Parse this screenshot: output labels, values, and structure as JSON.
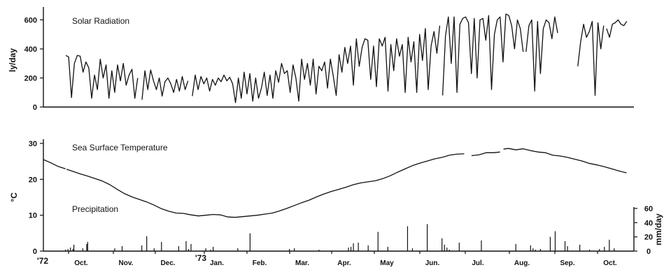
{
  "chart_data": [
    {
      "type": "line",
      "title": "Solar Radiation",
      "ylabel": "ly/day",
      "ylim": [
        0,
        650
      ],
      "yticks": [
        0,
        200,
        400,
        600
      ],
      "xlim": [
        0,
        395
      ],
      "segments": [
        {
          "x": [
            0,
            2,
            4,
            6,
            8,
            10,
            12,
            14,
            16,
            18,
            20,
            22,
            24,
            26,
            28,
            30,
            32,
            34,
            36,
            38,
            40,
            42,
            44,
            46,
            48,
            50
          ],
          "y": [
            355,
            345,
            65,
            300,
            355,
            350,
            240,
            310,
            270,
            60,
            220,
            120,
            330,
            200,
            290,
            60,
            250,
            100,
            290,
            180,
            300,
            150,
            220,
            260,
            60,
            200
          ]
        },
        {
          "x": [
            53,
            55,
            57,
            59,
            61,
            63,
            65,
            67,
            69,
            71,
            73,
            75,
            77,
            79,
            81,
            83,
            85
          ],
          "y": [
            50,
            250,
            120,
            255,
            180,
            120,
            200,
            75,
            175,
            200,
            160,
            100,
            190,
            110,
            210,
            120,
            180
          ]
        },
        {
          "x": [
            88,
            90,
            92,
            94,
            96,
            98,
            100,
            102,
            104,
            106,
            108,
            110,
            112,
            114,
            116,
            118,
            120,
            122,
            124,
            126,
            128,
            130,
            132,
            134,
            136,
            138,
            140,
            142,
            144,
            146,
            148,
            150,
            152,
            154,
            156,
            158,
            160,
            162,
            164,
            166,
            168,
            170,
            172,
            174,
            176,
            178,
            180,
            182,
            184,
            186,
            188,
            190,
            192,
            194,
            196,
            198,
            200,
            202,
            204,
            206,
            208,
            210,
            212,
            214,
            216,
            218,
            220,
            222,
            224,
            226,
            228,
            230,
            232,
            234,
            236,
            238,
            240,
            242,
            244,
            246,
            248,
            250,
            252,
            254,
            256,
            258,
            260
          ],
          "y": [
            75,
            220,
            120,
            210,
            160,
            200,
            110,
            190,
            150,
            200,
            175,
            220,
            180,
            205,
            160,
            30,
            200,
            60,
            240,
            90,
            230,
            40,
            200,
            60,
            130,
            240,
            80,
            220,
            60,
            250,
            170,
            300,
            230,
            250,
            100,
            290,
            200,
            40,
            330,
            190,
            300,
            150,
            330,
            90,
            280,
            250,
            310,
            130,
            330,
            210,
            80,
            360,
            240,
            410,
            300,
            420,
            150,
            470,
            280,
            410,
            470,
            460,
            190,
            420,
            140,
            470,
            420,
            480,
            110,
            430,
            250,
            470,
            350,
            430,
            100,
            480,
            310,
            450,
            100,
            500,
            320,
            540,
            120,
            420,
            520,
            370,
            560
          ]
        },
        {
          "x": [
            262,
            264,
            266,
            268,
            270,
            272,
            274,
            276,
            278,
            280,
            282,
            284,
            286,
            288,
            290,
            292,
            294,
            296,
            298,
            300,
            302,
            304,
            306,
            308,
            310,
            312,
            314,
            316,
            318
          ],
          "y": [
            80,
            490,
            620,
            300,
            620,
            100,
            570,
            610,
            620,
            580,
            230,
            610,
            200,
            600,
            610,
            460,
            630,
            120,
            500,
            600,
            620,
            310,
            640,
            630,
            560,
            400,
            600,
            540,
            380
          ]
        },
        {
          "x": [
            320,
            322,
            324,
            326,
            328,
            330,
            332,
            334,
            336,
            338,
            340,
            342
          ],
          "y": [
            380,
            560,
            600,
            110,
            590,
            230,
            540,
            600,
            580,
            470,
            620,
            510
          ]
        },
        {
          "x": [
            356,
            358,
            360,
            362,
            364,
            366,
            368,
            370,
            372,
            374
          ],
          "y": [
            280,
            450,
            570,
            480,
            520,
            590,
            80,
            580,
            400,
            560
          ]
        },
        {
          "x": [
            376,
            378,
            380,
            382,
            384,
            386,
            388,
            390
          ],
          "y": [
            540,
            480,
            570,
            580,
            600,
            570,
            560,
            590
          ]
        },
        {
          "x": [
            444,
            446,
            448,
            450,
            452
          ],
          "y": [
            250,
            350,
            470,
            400,
            460
          ]
        },
        {
          "x": [
            458,
            460,
            462,
            464,
            466,
            468,
            470,
            472,
            474,
            476,
            478,
            480,
            482,
            484,
            486,
            488,
            490,
            492,
            494,
            496,
            498,
            500,
            502,
            504,
            506,
            508,
            510,
            512,
            514,
            516,
            518,
            520,
            522,
            524,
            526,
            528,
            530,
            532,
            534,
            536,
            538,
            540,
            542,
            544,
            546,
            548,
            550,
            552,
            554,
            556,
            558,
            560,
            562,
            564,
            566,
            568,
            570,
            572,
            574,
            576,
            578,
            580,
            582,
            584,
            586,
            588,
            590,
            592,
            594,
            596,
            598,
            600,
            602
          ],
          "y": [
            230,
            340,
            450,
            520,
            380,
            90,
            470,
            190,
            510,
            200,
            350,
            280,
            470,
            460,
            140,
            310,
            370,
            360,
            60,
            400,
            220,
            420,
            300,
            130,
            370,
            260,
            340,
            170,
            380,
            300,
            200,
            60,
            390,
            250,
            320,
            100,
            360,
            280,
            340,
            50,
            330,
            200,
            350,
            120,
            280,
            290,
            100,
            340,
            200,
            360,
            60,
            280,
            280,
            320,
            120,
            350,
            180,
            330,
            210,
            290,
            60,
            260,
            260,
            280,
            100,
            330,
            290,
            260,
            190,
            300,
            260,
            270,
            250
          ]
        }
      ]
    },
    {
      "type": "line",
      "title": "Sea Surface Temperature",
      "ylabel": "°C",
      "ylim": [
        0,
        30
      ],
      "yticks": [
        0,
        10,
        20,
        30
      ],
      "segments": [
        {
          "x": [
            0,
            15,
            30,
            45
          ],
          "y": [
            25.5,
            24.6,
            23.6,
            22.9
          ]
        },
        {
          "x": [
            47,
            60,
            75,
            90,
            105,
            120,
            135,
            150,
            165,
            180,
            195,
            210,
            225,
            240,
            255,
            270,
            285,
            300,
            315,
            330,
            345,
            360,
            375,
            390,
            405,
            420,
            435,
            450,
            465,
            480,
            495,
            510,
            525,
            540,
            555,
            570,
            585,
            600,
            615,
            630,
            645,
            660,
            675,
            690,
            705,
            720,
            735,
            750,
            765,
            780,
            795,
            810,
            825,
            840,
            855
          ],
          "y": [
            22.8,
            22.2,
            21.5,
            20.9,
            20.2,
            19.5,
            18.5,
            17.2,
            16,
            15.1,
            14.4,
            13.7,
            12.8,
            11.8,
            11.1,
            10.6,
            10.5,
            10.1,
            9.8,
            10,
            10.2,
            10.1,
            9.5,
            9.4,
            9.6,
            9.8,
            10,
            10.3,
            10.6,
            11.2,
            11.9,
            12.7,
            13.5,
            14.2,
            15.1,
            15.9,
            16.6,
            17.2,
            17.8,
            18.5,
            19,
            19.3,
            19.6,
            20.2,
            21,
            22,
            22.9,
            23.8,
            24.5,
            25.1,
            25.7,
            26.1,
            26.7,
            27,
            27.1
          ]
        },
        {
          "x": [
            870,
            885,
            900,
            915,
            928
          ],
          "y": [
            26.6,
            26.8,
            27.4,
            27.4,
            27.6
          ]
        },
        {
          "x": [
            935,
            945,
            960,
            975,
            990,
            1005,
            1020,
            1035,
            1050,
            1065,
            1080,
            1095,
            1110,
            1125,
            1140,
            1155,
            1170,
            1185
          ],
          "y": [
            28.4,
            28.6,
            28.2,
            28.5,
            28,
            27.6,
            27.4,
            26.7,
            26.5,
            26.1,
            25.6,
            25.1,
            24.4,
            24,
            23.5,
            22.9,
            22.3,
            21.8
          ]
        }
      ]
    },
    {
      "type": "bar",
      "title": "Precipitation",
      "ylabel": "mm/day",
      "ylim": [
        0,
        60
      ],
      "yticks": [
        0,
        20,
        40,
        60
      ],
      "x": [
        45,
        50,
        55,
        60,
        62,
        80,
        88,
        90,
        145,
        160,
        200,
        210,
        225,
        240,
        275,
        290,
        295,
        300,
        330,
        340,
        345,
        395,
        420,
        500,
        510,
        560,
        620,
        625,
        630,
        640,
        660,
        680,
        700,
        740,
        750,
        780,
        810,
        815,
        820,
        825,
        845,
        890,
        960,
        990,
        995,
        1000,
        1010,
        1030,
        1040,
        1060,
        1065,
        1090,
        1110,
        1130,
        1140,
        1150,
        1160
      ],
      "values": [
        2,
        3,
        5,
        3,
        9,
        4,
        10,
        13,
        4,
        7,
        8,
        21,
        4,
        13,
        7,
        14,
        3,
        10,
        4,
        2,
        6,
        4,
        25,
        3,
        4,
        2,
        5,
        6,
        11,
        12,
        8,
        27,
        6,
        35,
        4,
        38,
        18,
        9,
        5,
        2,
        12,
        15,
        10,
        8,
        4,
        2,
        3,
        20,
        28,
        14,
        7,
        9,
        2,
        3,
        6,
        16,
        4
      ]
    }
  ],
  "months": [
    "Oct.",
    "Nov.",
    "Dec.",
    "Jan.",
    "Feb.",
    "Mar.",
    "Apr.",
    "May",
    "Jun.",
    "Jul.",
    "Aug.",
    "Sep.",
    "Oct."
  ],
  "years": [
    "'72",
    "'73"
  ]
}
